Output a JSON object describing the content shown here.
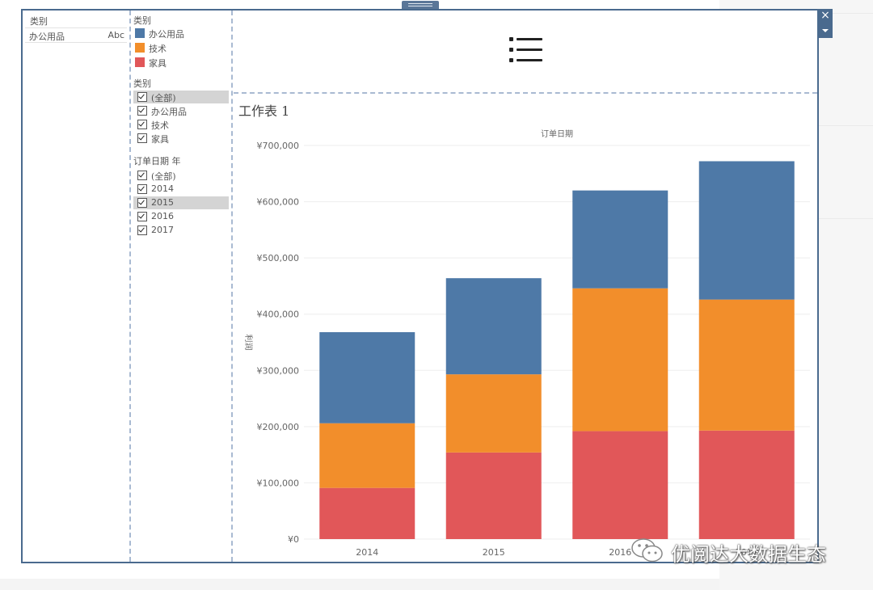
{
  "filter_panel": {
    "title": "类别",
    "item": "办公用品",
    "type_label": "Abc"
  },
  "legend": {
    "title": "类别",
    "items": [
      {
        "label": "办公用品",
        "color": "#4e79a7"
      },
      {
        "label": "技术",
        "color": "#f28e2b"
      },
      {
        "label": "家具",
        "color": "#e15759"
      }
    ]
  },
  "category_filter": {
    "title": "类别",
    "items": [
      {
        "label": "(全部)",
        "checked": true,
        "selected": true
      },
      {
        "label": "办公用品",
        "checked": true,
        "selected": false
      },
      {
        "label": "技术",
        "checked": true,
        "selected": false
      },
      {
        "label": "家具",
        "checked": true,
        "selected": false
      }
    ]
  },
  "year_filter": {
    "title": "订单日期 年",
    "items": [
      {
        "label": "(全部)",
        "checked": true,
        "selected": false
      },
      {
        "label": "2014",
        "checked": true,
        "selected": false
      },
      {
        "label": "2015",
        "checked": true,
        "selected": true
      },
      {
        "label": "2016",
        "checked": true,
        "selected": false
      },
      {
        "label": "2017",
        "checked": true,
        "selected": false
      }
    ]
  },
  "controls": {
    "close_symbol": "×"
  },
  "sheet": {
    "title": "工作表 1"
  },
  "chart_data": {
    "type": "bar",
    "stacked": true,
    "title": "订单日期",
    "xlabel": "",
    "ylabel": "利润",
    "categories": [
      "2014",
      "2015",
      "2016",
      "2017"
    ],
    "yticks": [
      "¥0",
      "¥100,000",
      "¥200,000",
      "¥300,000",
      "¥400,000",
      "¥500,000",
      "¥600,000",
      "¥700,000"
    ],
    "ylim": [
      0,
      700000
    ],
    "series": [
      {
        "name": "家具",
        "color": "#e15759",
        "values": [
          91000,
          154000,
          192000,
          193000
        ]
      },
      {
        "name": "技术",
        "color": "#f28e2b",
        "values": [
          115000,
          139000,
          254000,
          233000
        ]
      },
      {
        "name": "办公用品",
        "color": "#4e79a7",
        "values": [
          162000,
          171000,
          174000,
          246000
        ]
      }
    ],
    "grid": true
  },
  "watermark": {
    "text": "优阅达大数据生态"
  }
}
